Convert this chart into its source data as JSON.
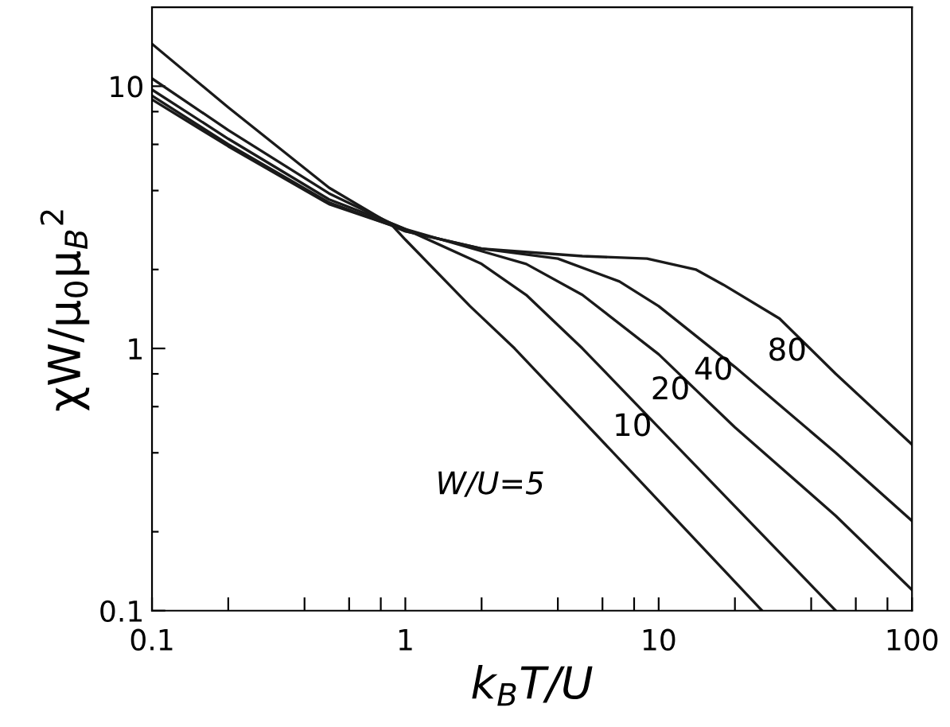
{
  "chart_data": {
    "type": "line",
    "xlabel": "k$_{B}$T/U",
    "ylabel": "χW/μ$_{0}$μ$_{B}$$^{2}$",
    "series": [
      {
        "name": "W/U=5",
        "color": "#1a1a1a",
        "x": [
          0.1,
          0.2,
          0.5,
          0.88,
          1,
          1.8,
          2.7,
          8,
          25.6
        ],
        "values": [
          14.5,
          8.3,
          4.1,
          2.97,
          2.6,
          1.45,
          1.0,
          0.33,
          0.1
        ]
      },
      {
        "name": "10",
        "color": "#1a1a1a",
        "x": [
          0.1,
          0.2,
          0.5,
          0.88,
          1,
          2,
          3,
          5,
          10,
          20,
          50
        ],
        "values": [
          10.7,
          6.8,
          3.9,
          3.0,
          2.85,
          2.1,
          1.6,
          1.0,
          0.5,
          0.25,
          0.1
        ]
      },
      {
        "name": "20",
        "color": "#1a1a1a",
        "x": [
          0.1,
          0.2,
          0.5,
          0.88,
          1,
          2,
          3,
          5,
          10,
          20,
          50,
          100
        ],
        "values": [
          9.7,
          6.3,
          3.7,
          3.0,
          2.85,
          2.35,
          2.1,
          1.6,
          0.95,
          0.5,
          0.23,
          0.12
        ]
      },
      {
        "name": "40",
        "color": "#1a1a1a",
        "x": [
          0.1,
          0.2,
          0.5,
          0.88,
          1,
          2,
          4,
          7,
          10,
          20,
          50,
          100
        ],
        "values": [
          9.2,
          6.0,
          3.6,
          2.95,
          2.8,
          2.4,
          2.2,
          1.8,
          1.45,
          0.85,
          0.4,
          0.22
        ]
      },
      {
        "name": "80",
        "color": "#1a1a1a",
        "x": [
          0.1,
          0.2,
          0.5,
          0.88,
          1,
          2,
          5,
          9,
          14,
          18,
          30,
          50,
          100
        ],
        "values": [
          8.9,
          5.9,
          3.55,
          2.95,
          2.8,
          2.4,
          2.25,
          2.2,
          2.0,
          1.75,
          1.3,
          0.8,
          0.43
        ]
      }
    ],
    "log": "xy",
    "xlim": [
      0.1,
      100
    ],
    "ylim": [
      0.1,
      20
    ],
    "xticks": [
      0.1,
      {
        "value": 0.2,
        "label": null
      },
      {
        "value": 0.4,
        "label": null
      },
      {
        "value": 0.6,
        "label": null
      },
      {
        "value": 0.8,
        "label": null
      },
      1,
      {
        "value": 2,
        "label": null
      },
      {
        "value": 4,
        "label": null
      },
      {
        "value": 6,
        "label": null
      },
      {
        "value": 8,
        "label": null
      },
      10,
      {
        "value": 20,
        "label": null
      },
      {
        "value": 40,
        "label": null
      },
      {
        "value": 60,
        "label": null
      },
      {
        "value": 80,
        "label": null
      },
      100
    ],
    "yticks": [
      0.1,
      {
        "value": 0.2,
        "label": null
      },
      {
        "value": 0.4,
        "label": null
      },
      {
        "value": 0.6,
        "label": null
      },
      {
        "value": 0.8,
        "label": null
      },
      1,
      {
        "value": 2,
        "label": null
      },
      {
        "value": 4,
        "label": null
      },
      {
        "value": 6,
        "label": null
      },
      {
        "value": 8,
        "label": null
      },
      10
    ],
    "grid": false,
    "legend": false,
    "marker": "none",
    "line_style": "solid"
  }
}
